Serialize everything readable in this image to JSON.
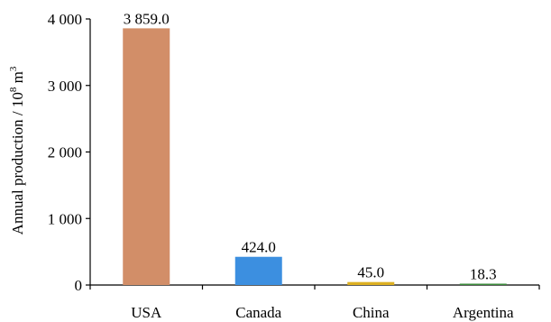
{
  "chart_data": {
    "type": "bar",
    "categories": [
      "USA",
      "Canada",
      "China",
      "Argentina"
    ],
    "values": [
      3859.0,
      424.0,
      45.0,
      18.3
    ],
    "data_labels": [
      "3 859.0",
      "424.0",
      "45.0",
      "18.3"
    ],
    "bar_colors": [
      "#D28E68",
      "#3C8FE0",
      "#DDB022",
      "#3C8B3C"
    ],
    "ylabel_main": "Annual production / 10",
    "ylabel_sup1": "8",
    "ylabel_mid": " m",
    "ylabel_sup2": "3",
    "ylim": [
      0,
      4000
    ],
    "yticks": [
      0,
      1000,
      2000,
      3000,
      4000
    ],
    "ytick_labels": [
      "0",
      "1 000",
      "2 000",
      "3 000",
      "4 000"
    ],
    "grid": false,
    "legend": "none"
  }
}
